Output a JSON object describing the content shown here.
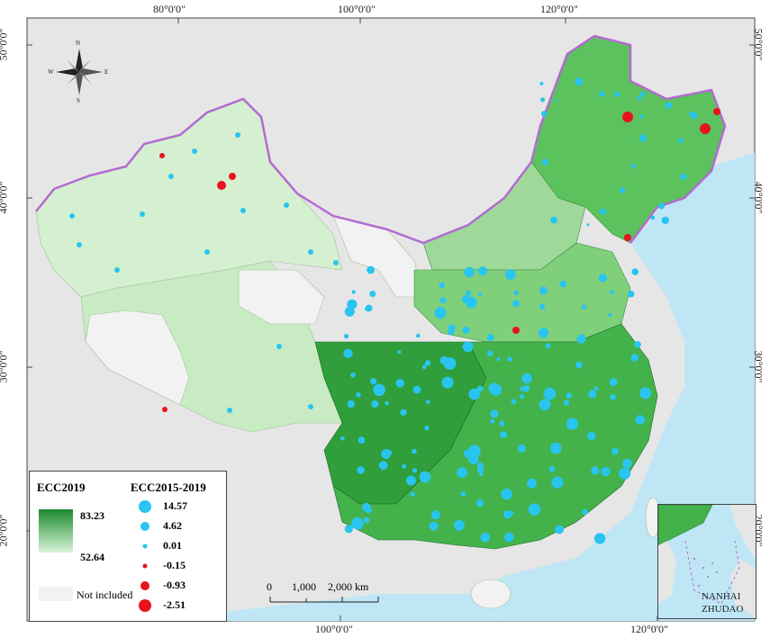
{
  "coords": {
    "top": [
      "80°0'0\"",
      "100°0'0\"",
      "120°0'0\""
    ],
    "bottom": [
      "100°0'0\"",
      "120°0'0\""
    ],
    "left": [
      "50°0'0\"",
      "40°0'0\"",
      "30°0'0\"",
      "20°0'0\""
    ],
    "right": [
      "50°0'0\"",
      "40°0'0\"",
      "30°0'0\"",
      "20°0'0\""
    ]
  },
  "legend": {
    "ecc_title": "ECC2019",
    "ecc_max": "83.23",
    "ecc_min": "52.64",
    "not_included": "Not included",
    "change_title": "ECC2015-2019",
    "change_items": [
      {
        "label": "14.57",
        "color": "#29c5f0",
        "size": "large"
      },
      {
        "label": "4.62",
        "color": "#29c5f0",
        "size": "medium"
      },
      {
        "label": "0.01",
        "color": "#29c5f0",
        "size": "small"
      },
      {
        "label": "-0.15",
        "color": "#e8141d",
        "size": "small"
      },
      {
        "label": "-0.93",
        "color": "#e8141d",
        "size": "medium"
      },
      {
        "label": "-2.51",
        "color": "#e8141d",
        "size": "large"
      }
    ]
  },
  "scale": {
    "labels": [
      "0",
      "1,000",
      "2,000 km"
    ]
  },
  "inset": {
    "label_line1": "NANHAI",
    "label_line2": "ZHUDAO"
  },
  "compass": {
    "n": "N",
    "s": "S",
    "e": "E",
    "w": "W"
  },
  "colors": {
    "sea": "#bfe6f5",
    "land": "#e6e6e6",
    "not_included": "#f2f2f2",
    "dark_green": "#1a8a2e",
    "light_green": "#d9f5d9",
    "border": "#b36bd1",
    "increase": "#29c5f0",
    "decrease": "#e8141d"
  }
}
